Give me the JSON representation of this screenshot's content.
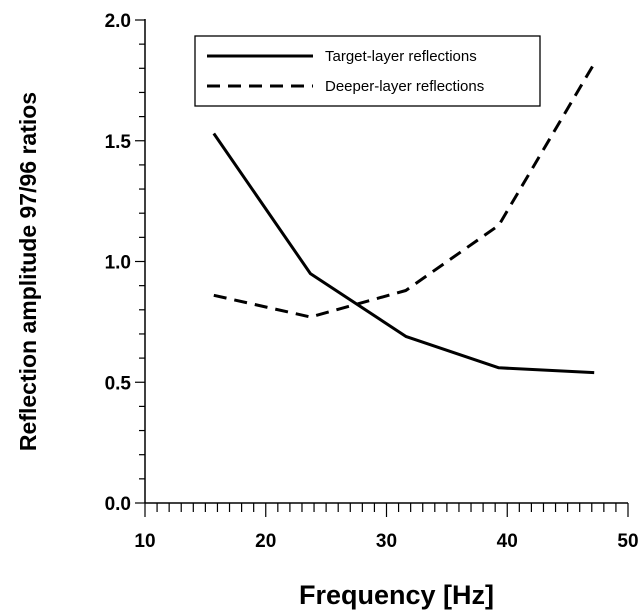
{
  "chart_data": {
    "type": "line",
    "title": "",
    "xlabel": "Frequency [Hz]",
    "ylabel": "Reflection amplitude 97/96 ratios",
    "xlim": [
      10,
      50
    ],
    "ylim": [
      0.0,
      2.0
    ],
    "x_major_ticks": [
      10,
      20,
      30,
      40,
      50
    ],
    "x_tick_labels": [
      "10",
      "20",
      "30",
      "40",
      "50"
    ],
    "x_minor_step": 1,
    "y_major_ticks": [
      0.0,
      0.5,
      1.0,
      1.5,
      2.0
    ],
    "y_tick_labels": [
      "0.0",
      "0.5",
      "1.0",
      "1.5",
      "2.0"
    ],
    "y_minor_step": 0.1,
    "grid": false,
    "legend_position": "top-right",
    "series": [
      {
        "name": "Target-layer reflections",
        "style": "solid",
        "color": "#000000",
        "x": [
          15.7,
          23.7,
          31.6,
          39.3,
          47.2
        ],
        "y": [
          1.53,
          0.95,
          0.69,
          0.56,
          0.54
        ]
      },
      {
        "name": "Deeper-layer reflections",
        "style": "dashed",
        "color": "#000000",
        "x": [
          15.7,
          23.7,
          31.6,
          39.3,
          47.2
        ],
        "y": [
          0.86,
          0.77,
          0.88,
          1.15,
          1.82
        ]
      }
    ]
  }
}
